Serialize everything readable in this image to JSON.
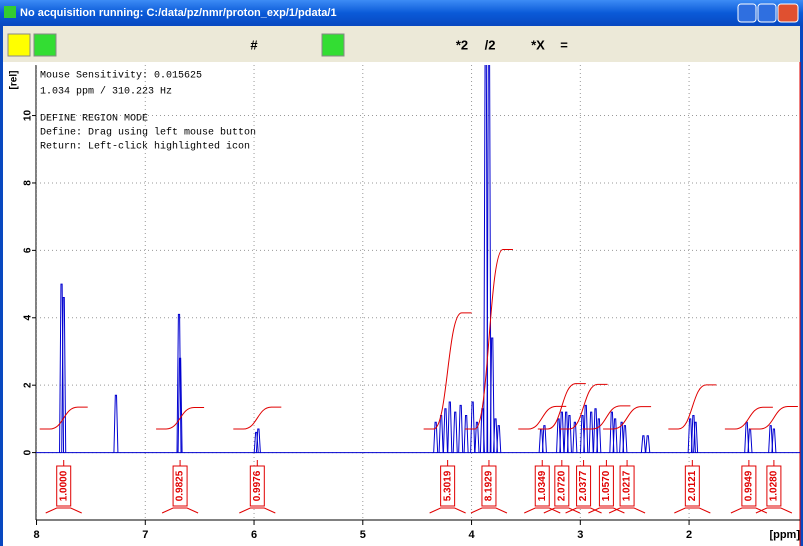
{
  "window": {
    "title": "No acquisition running: C:/data/pz/nmr/proton_exp/1/pdata/1"
  },
  "toolbar": {
    "labels": [
      "#",
      "*2",
      "/2",
      "*X",
      "="
    ]
  },
  "info": [
    "Mouse Sensitivity: 0.015625",
    "1.034 ppm / 310.223 Hz",
    "DEFINE REGION MODE",
    "Define: Drag using left mouse button",
    "Return: Left-click highlighted icon"
  ],
  "chart_data": {
    "type": "spectrum",
    "y_label": "[rel]",
    "x_label": "[ppm]",
    "xlim": [
      8.06,
      0.98
    ],
    "ylim": [
      -2,
      11.5
    ],
    "xticks": [
      8,
      7,
      6,
      5,
      4,
      3,
      2
    ],
    "yticks": [
      0,
      2,
      4,
      6,
      8,
      10
    ],
    "grid": true,
    "color": "#0000d0",
    "integral_color": "#e00000",
    "peaks": {
      "x": [
        7.77,
        7.75,
        7.27,
        6.69,
        6.68,
        5.98,
        5.96,
        4.33,
        4.28,
        4.24,
        4.2,
        4.15,
        4.1,
        4.05,
        3.99,
        3.95,
        3.9,
        3.87,
        3.84,
        3.81,
        3.78,
        3.75,
        3.36,
        3.33,
        3.2,
        3.17,
        3.13,
        3.1,
        3.05,
        2.98,
        2.95,
        2.9,
        2.86,
        2.83,
        2.71,
        2.68,
        2.62,
        2.59,
        2.42,
        2.38,
        1.99,
        1.96,
        1.94,
        1.47,
        1.44,
        1.25,
        1.22
      ],
      "values": [
        5.0,
        4.6,
        1.7,
        4.1,
        2.8,
        0.6,
        0.7,
        0.9,
        1.1,
        1.3,
        1.5,
        1.2,
        1.4,
        1.1,
        1.5,
        0.9,
        1.3,
        12,
        12,
        3.4,
        1.0,
        0.8,
        0.7,
        0.8,
        1.0,
        1.2,
        1.2,
        1.1,
        0.9,
        1.1,
        1.4,
        1.2,
        1.3,
        1.0,
        1.2,
        1.0,
        0.9,
        0.8,
        0.5,
        0.5,
        1.0,
        1.1,
        0.9,
        0.9,
        0.7,
        0.8,
        0.7
      ]
    },
    "integrals": {
      "x": [
        7.75,
        6.68,
        5.97,
        4.22,
        3.84,
        3.35,
        3.17,
        2.97,
        2.76,
        2.57,
        1.97,
        1.45,
        1.22
      ],
      "values": [
        1.0,
        0.9825,
        0.9976,
        5.3019,
        8.1929,
        1.0349,
        2.072,
        2.0377,
        1.057,
        1.0217,
        2.0121,
        0.9949,
        1.028
      ],
      "value_labels": [
        "1.0000",
        "0.9825",
        "0.9976",
        "5.3019",
        "8.1929",
        "1.0349",
        "2.0720",
        "2.0377",
        "1.0570",
        "1.0217",
        "2.0121",
        "0.9949",
        "1.0280"
      ]
    }
  }
}
